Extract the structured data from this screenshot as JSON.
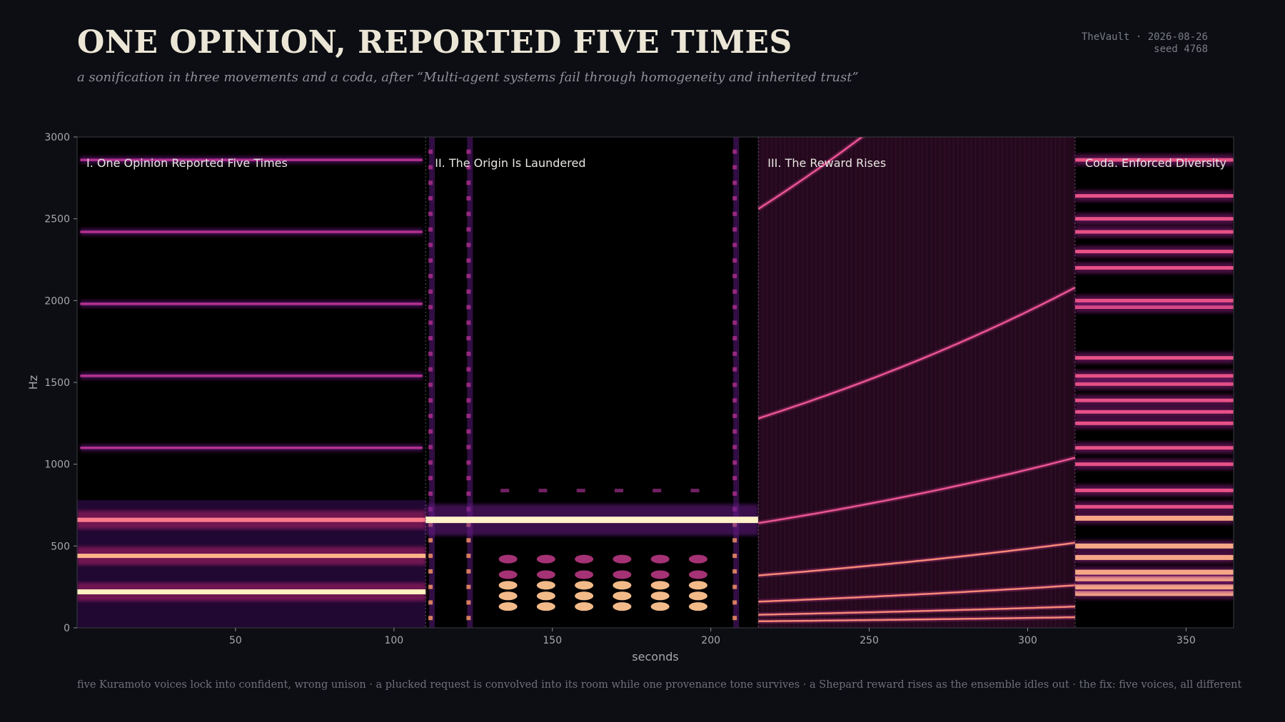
{
  "header": {
    "title": "ONE OPINION, REPORTED FIVE TIMES",
    "subtitle": "a sonification in three movements and a coda, after “Multi-agent systems fail through homogeneity and inherited trust”",
    "meta_line1": "TheVault · 2026-08-26",
    "meta_line2": "seed 4768"
  },
  "caption": "five Kuramoto voices lock into confident, wrong unison · a plucked request is convolved into its room while one provenance tone survives · a Shepard reward rises as the ensemble idles out · the fix: five voices, all different",
  "chart_data": {
    "type": "heatmap",
    "subtype": "spectrogram",
    "title": "",
    "xlabel": "seconds",
    "ylabel": "Hz",
    "xlim": [
      0,
      365
    ],
    "ylim": [
      0,
      3000
    ],
    "xticks": [
      50,
      100,
      150,
      200,
      250,
      300,
      350
    ],
    "yticks": [
      0,
      500,
      1000,
      1500,
      2000,
      2500,
      3000
    ],
    "colormap": "magma",
    "grid": false,
    "background_color": "#000000",
    "segments": [
      {
        "label": "I. One Opinion Reported Five Times",
        "start": 0,
        "end": 110
      },
      {
        "label": "II. The Origin Is Laundered",
        "start": 110,
        "end": 215
      },
      {
        "label": "III. The Reward Rises",
        "start": 215,
        "end": 315
      },
      {
        "label": "Coda. Enforced Diversity",
        "start": 315,
        "end": 365
      }
    ],
    "movement_1": {
      "strong_partials_hz": [
        220,
        440,
        660
      ],
      "faint_partials_hz": [
        1100,
        1540,
        1980,
        2420,
        2860
      ]
    },
    "movement_2": {
      "provenance_tone_hz": 660,
      "pluck_times_s": [
        135,
        147,
        159,
        171,
        183,
        195
      ],
      "pluck_partials_hz": [
        130,
        195,
        260,
        325,
        420
      ],
      "room_columns_s": [
        112,
        124,
        208
      ]
    },
    "movement_3": {
      "shepard_base_hz": [
        40,
        80,
        160,
        320,
        640,
        1280,
        2560
      ],
      "shepard_end_hz": [
        65,
        130,
        260,
        520,
        1040,
        2080,
        4160
      ]
    },
    "coda": {
      "voices_hz": [
        210,
        250,
        300,
        340,
        430,
        500,
        670,
        740,
        840,
        1000,
        1100,
        1250,
        1320,
        1390,
        1490,
        1540,
        1650,
        1960,
        2000,
        2200,
        2300,
        2420,
        2500,
        2640,
        2860
      ]
    }
  }
}
